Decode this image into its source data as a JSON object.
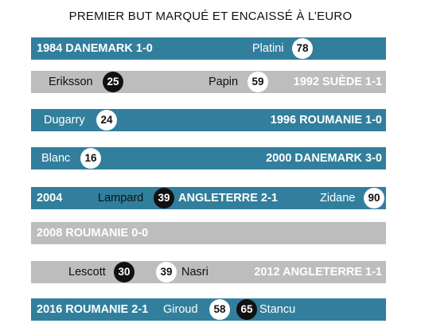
{
  "title": "PREMIER BUT MARQUÉ ET ENCAISSÉ À L’EURO",
  "colors": {
    "france_bar": "#317f9c",
    "no_goal_bar": "#bdbdbd",
    "france_goal_circle": "#ffffff",
    "conceded_goal_circle": "#111111"
  },
  "chart_data": {
    "type": "table",
    "title": "PREMIER BUT MARQUÉ ET ENCAISSÉ À L’EURO",
    "rows": [
      {
        "edition": "1984 DANEMARK 1-0",
        "bar": "france",
        "scored": {
          "name": "Platini",
          "minute": 78
        },
        "conceded": null
      },
      {
        "edition": "1992 SUÈDE 1-1",
        "bar": "opponent",
        "scored": {
          "name": "Papin",
          "minute": 59
        },
        "conceded": {
          "name": "Eriksson",
          "minute": 25
        }
      },
      {
        "edition": "1996 ROUMANIE 1-0",
        "bar": "france",
        "scored": {
          "name": "Dugarry",
          "minute": 24
        },
        "conceded": null
      },
      {
        "edition": "2000 DANEMARK 3-0",
        "bar": "france",
        "scored": {
          "name": "Blanc",
          "minute": 16
        },
        "conceded": null
      },
      {
        "edition_year": "2004",
        "edition": "ANGLETERRE 2-1",
        "bar": "france",
        "scored": {
          "name": "Zidane",
          "minute": 90
        },
        "conceded": {
          "name": "Lampard",
          "minute": 39
        }
      },
      {
        "edition": "2008 ROUMANIE 0-0",
        "bar": "opponent",
        "scored": null,
        "conceded": null
      },
      {
        "edition": "2012 ANGLETERRE 1-1",
        "bar": "opponent",
        "scored": {
          "name": "Nasri",
          "minute": 39
        },
        "conceded": {
          "name": "Lescott",
          "minute": 30
        }
      },
      {
        "edition": "2016 ROUMANIE 2-1",
        "bar": "france",
        "scored": {
          "name": "Giroud",
          "minute": 58
        },
        "conceded": {
          "name": "Stancu",
          "minute": 65
        }
      }
    ]
  }
}
